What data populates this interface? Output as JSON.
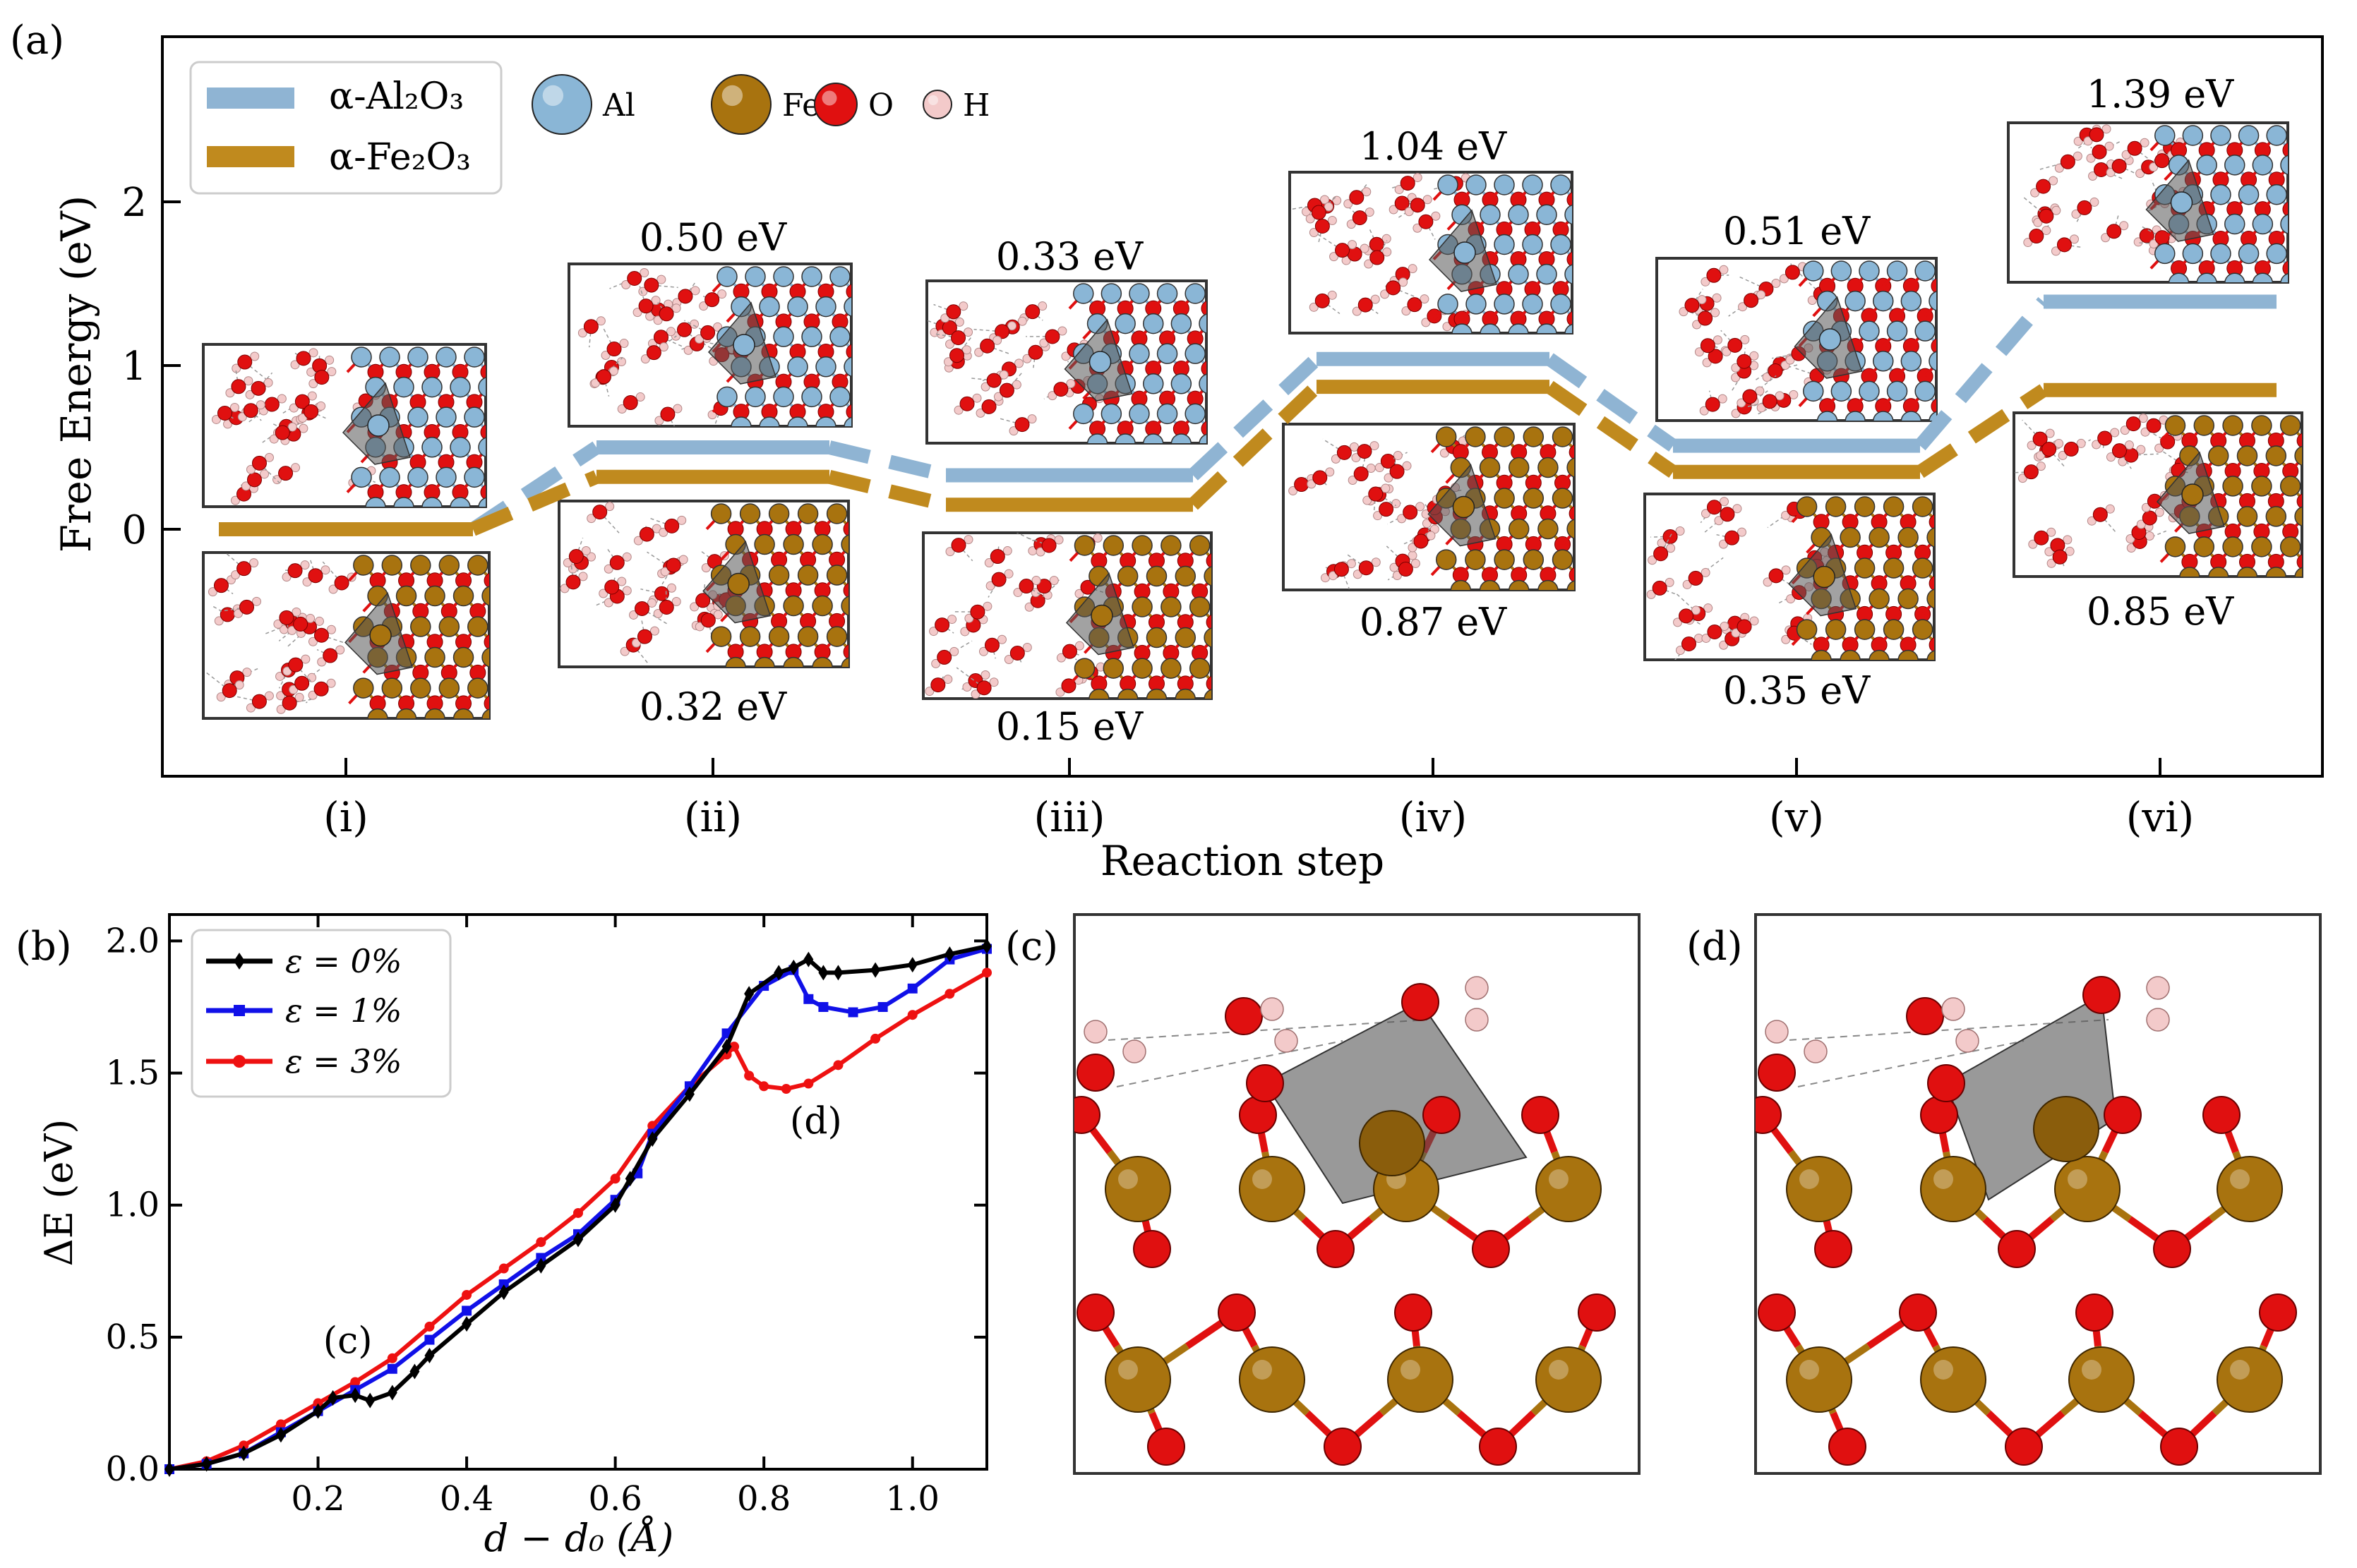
{
  "panels": {
    "a": "(a)",
    "b": "(b)",
    "c": "(c)",
    "d": "(d)"
  },
  "colors": {
    "al2o3": "#8fb4d3",
    "fe2o3": "#c08a1e",
    "eps0": "#000000",
    "eps1": "#1010e8",
    "eps3": "#ee1111",
    "atom_al": "#8ab6d6",
    "atom_fe": "#a8730f",
    "atom_o": "#e01010",
    "atom_h": "#f3caca"
  },
  "legend_a": {
    "al2o3_label": "α-Al₂O₃",
    "fe2o3_label": "α-Fe₂O₃",
    "atoms": [
      {
        "symbol": "Al",
        "color": "#8ab6d6"
      },
      {
        "symbol": "Fe",
        "color": "#a8730f"
      },
      {
        "symbol": "O",
        "color": "#e01010"
      },
      {
        "symbol": "H",
        "color": "#f3caca"
      }
    ]
  },
  "chart_data": [
    {
      "type": "line",
      "title": "",
      "xlabel": "Reaction step",
      "ylabel": "Free Energy (eV)",
      "categories": [
        "(i)",
        "(ii)",
        "(iii)",
        "(iv)",
        "(v)",
        "(vi)"
      ],
      "yticks": [
        0,
        1,
        2
      ],
      "ylim": [
        -1.5,
        3.05
      ],
      "series": [
        {
          "name": "α-Al₂O₃",
          "values": [
            0.0,
            0.5,
            0.33,
            1.04,
            0.51,
            1.39
          ],
          "labels": [
            "",
            "0.50 eV",
            "0.33 eV",
            "1.04 eV",
            "0.51 eV",
            "1.39 eV"
          ]
        },
        {
          "name": "α-Fe₂O₃",
          "values": [
            0.0,
            0.32,
            0.15,
            0.87,
            0.35,
            0.85
          ],
          "labels": [
            "",
            "0.32 eV",
            "0.15 eV",
            "0.87 eV",
            "0.35 eV",
            "0.85 eV"
          ]
        }
      ]
    },
    {
      "type": "line",
      "title": "",
      "xlabel": "d − d₀ (Å)",
      "ylabel": "ΔE (eV)",
      "xlim": [
        0.0,
        1.1
      ],
      "ylim": [
        0.0,
        2.1
      ],
      "xticks": [
        "0.2",
        "0.4",
        "0.6",
        "0.8",
        "1.0"
      ],
      "yticks": [
        "0.0",
        "0.5",
        "1.0",
        "1.5",
        "2.0"
      ],
      "annotations": [
        {
          "text": "(c)",
          "x": 0.24,
          "y": 0.44
        },
        {
          "text": "(d)",
          "x": 0.87,
          "y": 1.27
        }
      ],
      "series": [
        {
          "name": "ε = 0%",
          "marker": "diamond",
          "x": [
            0.0,
            0.05,
            0.1,
            0.15,
            0.2,
            0.22,
            0.25,
            0.27,
            0.3,
            0.33,
            0.35,
            0.4,
            0.45,
            0.5,
            0.55,
            0.6,
            0.62,
            0.65,
            0.7,
            0.75,
            0.78,
            0.82,
            0.84,
            0.86,
            0.88,
            0.9,
            0.95,
            1.0,
            1.05,
            1.1
          ],
          "y": [
            0.0,
            0.02,
            0.06,
            0.13,
            0.22,
            0.27,
            0.28,
            0.26,
            0.29,
            0.37,
            0.43,
            0.55,
            0.67,
            0.77,
            0.87,
            1.0,
            1.1,
            1.25,
            1.42,
            1.6,
            1.8,
            1.88,
            1.9,
            1.93,
            1.88,
            1.88,
            1.89,
            1.91,
            1.95,
            1.98
          ]
        },
        {
          "name": "ε = 1%",
          "marker": "square",
          "x": [
            0.0,
            0.05,
            0.1,
            0.15,
            0.2,
            0.25,
            0.3,
            0.35,
            0.4,
            0.45,
            0.5,
            0.55,
            0.6,
            0.63,
            0.65,
            0.7,
            0.75,
            0.8,
            0.84,
            0.86,
            0.88,
            0.92,
            0.96,
            1.0,
            1.05,
            1.1
          ],
          "y": [
            0.0,
            0.02,
            0.06,
            0.14,
            0.22,
            0.3,
            0.38,
            0.49,
            0.6,
            0.7,
            0.8,
            0.89,
            1.02,
            1.12,
            1.27,
            1.45,
            1.65,
            1.83,
            1.89,
            1.78,
            1.75,
            1.73,
            1.75,
            1.82,
            1.93,
            1.97
          ]
        },
        {
          "name": "ε = 3%",
          "marker": "circle",
          "x": [
            0.0,
            0.05,
            0.1,
            0.15,
            0.2,
            0.25,
            0.3,
            0.35,
            0.4,
            0.45,
            0.5,
            0.55,
            0.6,
            0.65,
            0.7,
            0.75,
            0.76,
            0.78,
            0.8,
            0.83,
            0.86,
            0.9,
            0.95,
            1.0,
            1.05,
            1.1
          ],
          "y": [
            0.0,
            0.03,
            0.09,
            0.17,
            0.25,
            0.33,
            0.42,
            0.54,
            0.66,
            0.76,
            0.86,
            0.97,
            1.1,
            1.3,
            1.45,
            1.57,
            1.6,
            1.49,
            1.45,
            1.44,
            1.46,
            1.53,
            1.63,
            1.72,
            1.8,
            1.88
          ]
        }
      ]
    }
  ]
}
